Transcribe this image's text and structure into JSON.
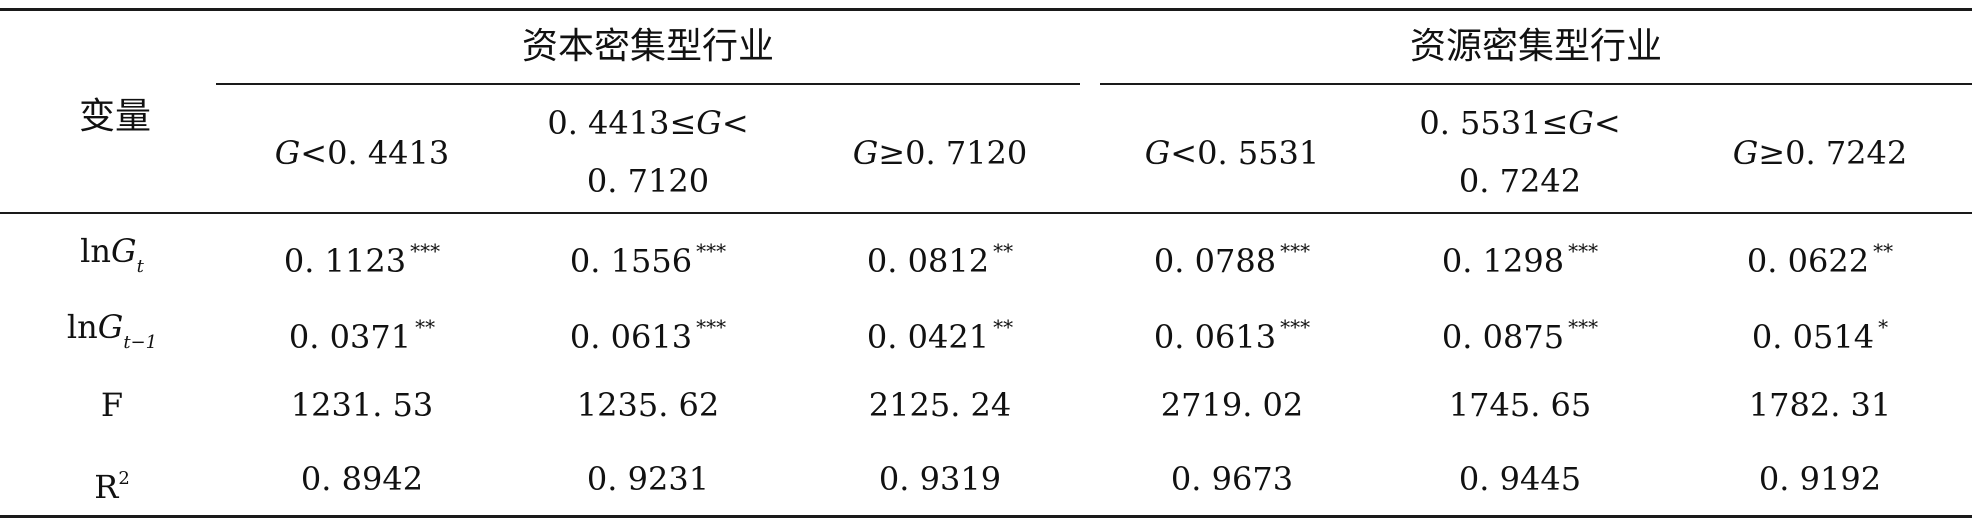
{
  "table": {
    "row_header": "变量",
    "groups": [
      {
        "title": "资本密集型行业"
      },
      {
        "title": "资源密集型行业"
      }
    ],
    "columns": [
      {
        "line1": "G<0. 4413"
      },
      {
        "line1": "0. 4413≤G<",
        "line2": "0. 7120"
      },
      {
        "line1": "G≥0. 7120"
      },
      {
        "line1": "G<0. 5531"
      },
      {
        "line1": "0. 5531≤G<",
        "line2": "0. 7242"
      },
      {
        "line1": "G≥0. 7242"
      }
    ],
    "rows": [
      {
        "label_main": "lnG",
        "label_sub": "t",
        "values": [
          {
            "v": "0. 1123",
            "s": "***"
          },
          {
            "v": "0. 1556",
            "s": "***"
          },
          {
            "v": "0. 0812",
            "s": "**"
          },
          {
            "v": "0. 0788",
            "s": "***"
          },
          {
            "v": "0. 1298",
            "s": "***"
          },
          {
            "v": "0. 0622",
            "s": "**"
          }
        ]
      },
      {
        "label_main": "lnG",
        "label_sub": "t−1",
        "values": [
          {
            "v": "0. 0371",
            "s": "**"
          },
          {
            "v": "0. 0613",
            "s": "***"
          },
          {
            "v": "0. 0421",
            "s": "**"
          },
          {
            "v": "0. 0613",
            "s": "***"
          },
          {
            "v": "0. 0875",
            "s": "***"
          },
          {
            "v": "0. 0514",
            "s": "*"
          }
        ]
      },
      {
        "label_main": "F",
        "values": [
          {
            "v": "1231. 53"
          },
          {
            "v": "1235. 62"
          },
          {
            "v": "2125. 24"
          },
          {
            "v": "2719. 02"
          },
          {
            "v": "1745. 65"
          },
          {
            "v": "1782. 31"
          }
        ]
      },
      {
        "label_main": "R",
        "label_sup": "2",
        "values": [
          {
            "v": "0. 8942"
          },
          {
            "v": "0. 9231"
          },
          {
            "v": "0. 9319"
          },
          {
            "v": "0. 9673"
          },
          {
            "v": "0. 9445"
          },
          {
            "v": "0. 9192"
          }
        ]
      }
    ]
  }
}
